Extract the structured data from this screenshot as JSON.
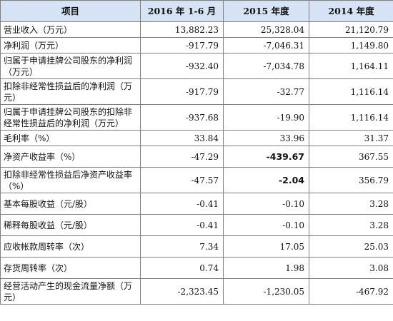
{
  "headers": [
    "项目",
    "2016 年 1-6 月",
    "2015 年度",
    "2014 年度"
  ],
  "rows": [
    {
      "label": "营业收入（万元）",
      "values": [
        "13,882.23",
        "25,328.04",
        "21,120.79"
      ]
    },
    {
      "label": "净利润（万元）",
      "values": [
        "-917.79",
        "-7,046.31",
        "1,149.80"
      ]
    },
    {
      "label": "归属于申请挂牌公司股东的净利润（万元）",
      "values": [
        "-932.40",
        "-7,034.78",
        "1,164.11"
      ]
    },
    {
      "label": "扣除非经常性损益后的净利润（万元）",
      "values": [
        "-917.79",
        "-32.77",
        "1,116.14"
      ]
    },
    {
      "label": "归属于申请挂牌公司股东的扣除非经常性损益后的净利润（万元）",
      "values": [
        "-937.68",
        "-19.90",
        "1,116.14"
      ]
    },
    {
      "label": "毛利率（%）",
      "values": [
        "33.84",
        "33.96",
        "31.37"
      ]
    },
    {
      "label": "净资产收益率（%）",
      "values": [
        "-47.29",
        "-439.67",
        "367.55"
      ]
    },
    {
      "label": "扣除非经常性损益后净资产收益率（%）",
      "values": [
        "-47.57",
        "-2.04",
        "356.79"
      ]
    },
    {
      "label": "基本每股收益（元/股）",
      "values": [
        "-0.41",
        "-0.10",
        "3.28"
      ]
    },
    {
      "label": "稀释每股收益（元/股）",
      "values": [
        "-0.41",
        "-0.10",
        "3.28"
      ]
    },
    {
      "label": "应收帐款周转率（次）",
      "values": [
        "7.34",
        "17.05",
        "25.03"
      ]
    },
    {
      "label": "存货周转率（次）",
      "values": [
        "0.74",
        "1.98",
        "3.08"
      ]
    },
    {
      "label": "经营活动产生的现金流量净额（万元）",
      "values": [
        "-2,323.45",
        "-1,230.05",
        "-467.92"
      ]
    }
  ]
}
